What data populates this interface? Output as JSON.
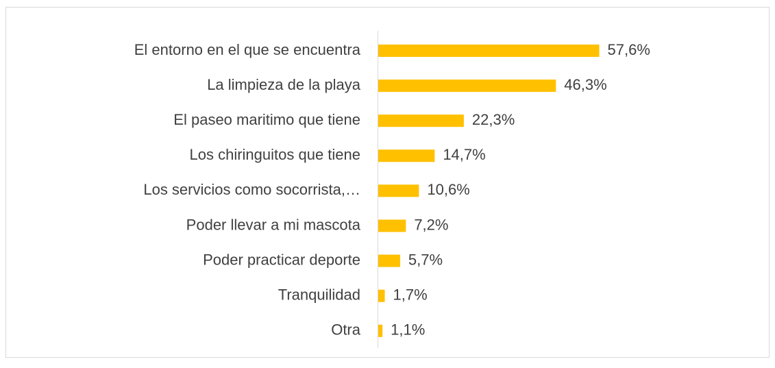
{
  "chart_data": {
    "type": "bar",
    "orientation": "horizontal",
    "categories": [
      "El entorno en el que se encuentra",
      "La limpieza de la playa",
      "El paseo maritimo que tiene",
      "Los chiringuitos que tiene",
      "Los servicios como socorrista,…",
      "Poder llevar a mi mascota",
      "Poder practicar deporte",
      "Tranquilidad",
      "Otra"
    ],
    "values": [
      57.6,
      46.3,
      22.3,
      14.7,
      10.6,
      7.2,
      5.7,
      1.7,
      1.1
    ],
    "value_labels": [
      "57,6%",
      "46,3%",
      "22,3%",
      "14,7%",
      "10,6%",
      "7,2%",
      "5,7%",
      "1,7%",
      "1,1%"
    ],
    "color": "#FFC000"
  }
}
